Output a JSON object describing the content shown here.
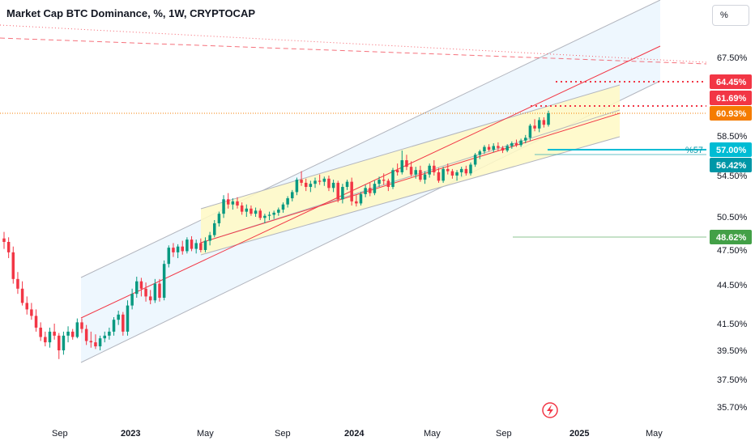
{
  "header": {
    "title": "Market Cap BTC Dominance, %, 1W, CRYPTOCAP",
    "unit_button": "%"
  },
  "colors": {
    "up": "#089981",
    "down": "#f23645",
    "channel_line": "#b2b5be",
    "channel_fill": "#e8f4fd",
    "wedge_fill": "#fff9c4",
    "trend_red": "#f23645",
    "dotted_red": "#f23645",
    "orange": "#f57c00",
    "cyan": "#00bcd4",
    "teal": "#0097a7",
    "green": "#43a047"
  },
  "chart_data": {
    "type": "candlestick",
    "symbol": "CRYPTOCAP:BTC.D",
    "interval": "1W",
    "y_unit": "%",
    "y_axis_ticks": [
      "67.50%",
      "58.50%",
      "54.50%",
      "50.50%",
      "47.50%",
      "44.50%",
      "41.50%",
      "39.50%",
      "37.50%",
      "35.70%"
    ],
    "x_axis_ticks": [
      "Sep",
      "2023",
      "May",
      "Sep",
      "2024",
      "May",
      "Sep",
      "2025",
      "May"
    ],
    "price_labels": [
      {
        "text": "64.45%",
        "value": 64.45,
        "kind": "dotted-level"
      },
      {
        "text": "61.69%",
        "value": 61.69,
        "kind": "dotted-level"
      },
      {
        "text": "60.93%",
        "value": 60.93,
        "kind": "last-price"
      },
      {
        "text": "57.00%",
        "value": 57.0,
        "kind": "alert-level"
      },
      {
        "text": "56.42%",
        "value": 56.42,
        "kind": "level"
      },
      {
        "text": "48.62%",
        "value": 48.62,
        "kind": "level"
      }
    ],
    "alert_label": "%57",
    "candles": [
      [
        48.5,
        49.1,
        47.6,
        48.2
      ],
      [
        48.2,
        48.6,
        46.8,
        47.3
      ],
      [
        47.3,
        47.8,
        44.6,
        45.0
      ],
      [
        45.0,
        45.6,
        43.8,
        44.2
      ],
      [
        44.2,
        44.8,
        42.9,
        43.1
      ],
      [
        43.1,
        43.6,
        42.2,
        42.6
      ],
      [
        42.6,
        43.1,
        41.8,
        42.1
      ],
      [
        42.1,
        42.6,
        40.9,
        41.2
      ],
      [
        41.2,
        41.6,
        40.2,
        40.5
      ],
      [
        40.5,
        40.9,
        39.8,
        40.1
      ],
      [
        40.1,
        41.2,
        39.7,
        40.9
      ],
      [
        40.9,
        41.5,
        40.3,
        40.6
      ],
      [
        40.6,
        40.8,
        38.9,
        39.5
      ],
      [
        39.5,
        40.9,
        39.2,
        40.6
      ],
      [
        40.6,
        41.3,
        40.1,
        40.9
      ],
      [
        40.9,
        41.1,
        40.3,
        40.5
      ],
      [
        40.5,
        41.9,
        40.4,
        41.6
      ],
      [
        41.6,
        41.9,
        40.8,
        41.1
      ],
      [
        41.1,
        41.4,
        39.9,
        40.2
      ],
      [
        40.2,
        40.9,
        39.7,
        40.1
      ],
      [
        40.1,
        40.7,
        39.6,
        39.8
      ],
      [
        39.8,
        40.6,
        39.5,
        40.4
      ],
      [
        40.4,
        40.9,
        40.1,
        40.6
      ],
      [
        40.6,
        41.2,
        40.3,
        40.9
      ],
      [
        40.9,
        42.0,
        40.6,
        41.8
      ],
      [
        41.8,
        42.5,
        41.4,
        42.2
      ],
      [
        42.2,
        42.4,
        40.6,
        40.9
      ],
      [
        40.9,
        43.3,
        40.6,
        42.9
      ],
      [
        42.9,
        44.2,
        42.6,
        43.8
      ],
      [
        43.8,
        45.2,
        43.5,
        44.8
      ],
      [
        44.8,
        45.1,
        43.6,
        44.2
      ],
      [
        44.2,
        44.7,
        43.2,
        43.6
      ],
      [
        43.6,
        44.1,
        43.0,
        43.3
      ],
      [
        43.3,
        45.0,
        43.1,
        44.6
      ],
      [
        44.6,
        45.0,
        43.2,
        43.5
      ],
      [
        43.5,
        46.6,
        43.3,
        46.3
      ],
      [
        46.3,
        47.9,
        46.0,
        47.7
      ],
      [
        47.7,
        48.1,
        46.9,
        47.3
      ],
      [
        47.3,
        48.0,
        46.8,
        47.8
      ],
      [
        47.8,
        48.3,
        47.1,
        47.4
      ],
      [
        47.4,
        48.6,
        47.2,
        48.4
      ],
      [
        48.4,
        48.7,
        47.4,
        47.6
      ],
      [
        47.6,
        48.4,
        47.2,
        48.1
      ],
      [
        48.1,
        48.5,
        47.3,
        47.5
      ],
      [
        47.5,
        48.6,
        47.3,
        48.3
      ],
      [
        48.3,
        49.1,
        47.9,
        48.8
      ],
      [
        48.8,
        50.2,
        48.6,
        49.9
      ],
      [
        49.9,
        51.0,
        49.6,
        50.8
      ],
      [
        50.8,
        52.6,
        50.4,
        52.2
      ],
      [
        52.2,
        52.8,
        51.3,
        51.7
      ],
      [
        51.7,
        52.3,
        51.2,
        52.0
      ],
      [
        52.0,
        52.4,
        51.3,
        51.6
      ],
      [
        51.6,
        51.9,
        50.7,
        51.0
      ],
      [
        51.0,
        51.7,
        50.5,
        51.3
      ],
      [
        51.3,
        51.6,
        50.6,
        50.8
      ],
      [
        50.8,
        51.4,
        50.5,
        51.1
      ],
      [
        51.1,
        51.3,
        50.2,
        50.4
      ],
      [
        50.4,
        50.8,
        49.9,
        50.6
      ],
      [
        50.6,
        51.0,
        50.2,
        50.7
      ],
      [
        50.7,
        51.1,
        50.3,
        50.9
      ],
      [
        50.9,
        51.4,
        50.6,
        51.2
      ],
      [
        51.2,
        51.9,
        50.9,
        51.7
      ],
      [
        51.7,
        52.5,
        51.4,
        52.3
      ],
      [
        52.3,
        53.1,
        52.0,
        52.9
      ],
      [
        52.9,
        54.3,
        52.6,
        54.1
      ],
      [
        54.1,
        54.9,
        53.5,
        53.8
      ],
      [
        53.8,
        54.2,
        53.0,
        53.4
      ],
      [
        53.4,
        54.0,
        52.9,
        53.7
      ],
      [
        53.7,
        54.3,
        53.3,
        54.0
      ],
      [
        54.0,
        54.6,
        53.6,
        53.9
      ],
      [
        53.9,
        54.4,
        53.5,
        54.2
      ],
      [
        54.2,
        54.5,
        53.0,
        53.3
      ],
      [
        53.3,
        54.1,
        52.9,
        53.8
      ],
      [
        53.8,
        54.0,
        51.9,
        52.2
      ],
      [
        52.2,
        53.7,
        51.8,
        53.4
      ],
      [
        53.4,
        54.1,
        53.1,
        53.9
      ],
      [
        53.9,
        54.3,
        51.6,
        52.0
      ],
      [
        52.0,
        52.6,
        51.5,
        51.8
      ],
      [
        51.8,
        52.9,
        51.6,
        52.7
      ],
      [
        52.7,
        53.6,
        52.4,
        53.3
      ],
      [
        53.3,
        53.8,
        52.5,
        52.8
      ],
      [
        52.8,
        54.0,
        52.6,
        53.7
      ],
      [
        53.7,
        54.4,
        53.4,
        54.1
      ],
      [
        54.1,
        54.7,
        53.6,
        54.0
      ],
      [
        54.0,
        54.2,
        53.0,
        53.4
      ],
      [
        53.4,
        55.2,
        53.2,
        55.0
      ],
      [
        55.0,
        55.6,
        54.5,
        54.8
      ],
      [
        54.8,
        56.9,
        54.6,
        55.9
      ],
      [
        55.9,
        56.4,
        55.0,
        55.3
      ],
      [
        55.3,
        55.8,
        54.4,
        54.6
      ],
      [
        54.6,
        55.3,
        54.2,
        55.0
      ],
      [
        55.0,
        55.4,
        53.9,
        54.1
      ],
      [
        54.1,
        54.9,
        53.7,
        54.6
      ],
      [
        54.6,
        55.6,
        54.3,
        55.4
      ],
      [
        55.4,
        55.9,
        54.5,
        54.8
      ],
      [
        54.8,
        55.2,
        53.8,
        54.0
      ],
      [
        54.0,
        55.3,
        53.8,
        55.1
      ],
      [
        55.1,
        55.6,
        54.6,
        54.9
      ],
      [
        54.9,
        55.1,
        54.2,
        54.5
      ],
      [
        54.5,
        55.0,
        54.0,
        54.8
      ],
      [
        54.8,
        55.3,
        54.4,
        55.1
      ],
      [
        55.1,
        55.4,
        54.5,
        54.7
      ],
      [
        54.7,
        55.7,
        54.5,
        55.5
      ],
      [
        55.5,
        56.6,
        55.3,
        56.4
      ],
      [
        56.4,
        57.0,
        56.0,
        56.8
      ],
      [
        56.8,
        57.5,
        56.5,
        57.3
      ],
      [
        57.3,
        57.6,
        56.8,
        57.0
      ],
      [
        57.0,
        57.7,
        56.7,
        57.4
      ],
      [
        57.4,
        57.8,
        56.9,
        57.2
      ],
      [
        57.2,
        57.4,
        56.6,
        56.9
      ],
      [
        56.9,
        57.6,
        56.7,
        57.4
      ],
      [
        57.4,
        57.9,
        57.1,
        57.7
      ],
      [
        57.7,
        58.1,
        57.3,
        57.5
      ],
      [
        57.5,
        58.2,
        57.3,
        58.0
      ],
      [
        58.0,
        58.6,
        57.7,
        58.3
      ],
      [
        58.3,
        59.8,
        58.0,
        59.6
      ],
      [
        59.6,
        60.3,
        59.0,
        59.3
      ],
      [
        59.3,
        60.5,
        58.9,
        60.2
      ],
      [
        60.2,
        60.5,
        59.4,
        59.7
      ],
      [
        59.7,
        61.2,
        59.5,
        60.93
      ]
    ]
  }
}
